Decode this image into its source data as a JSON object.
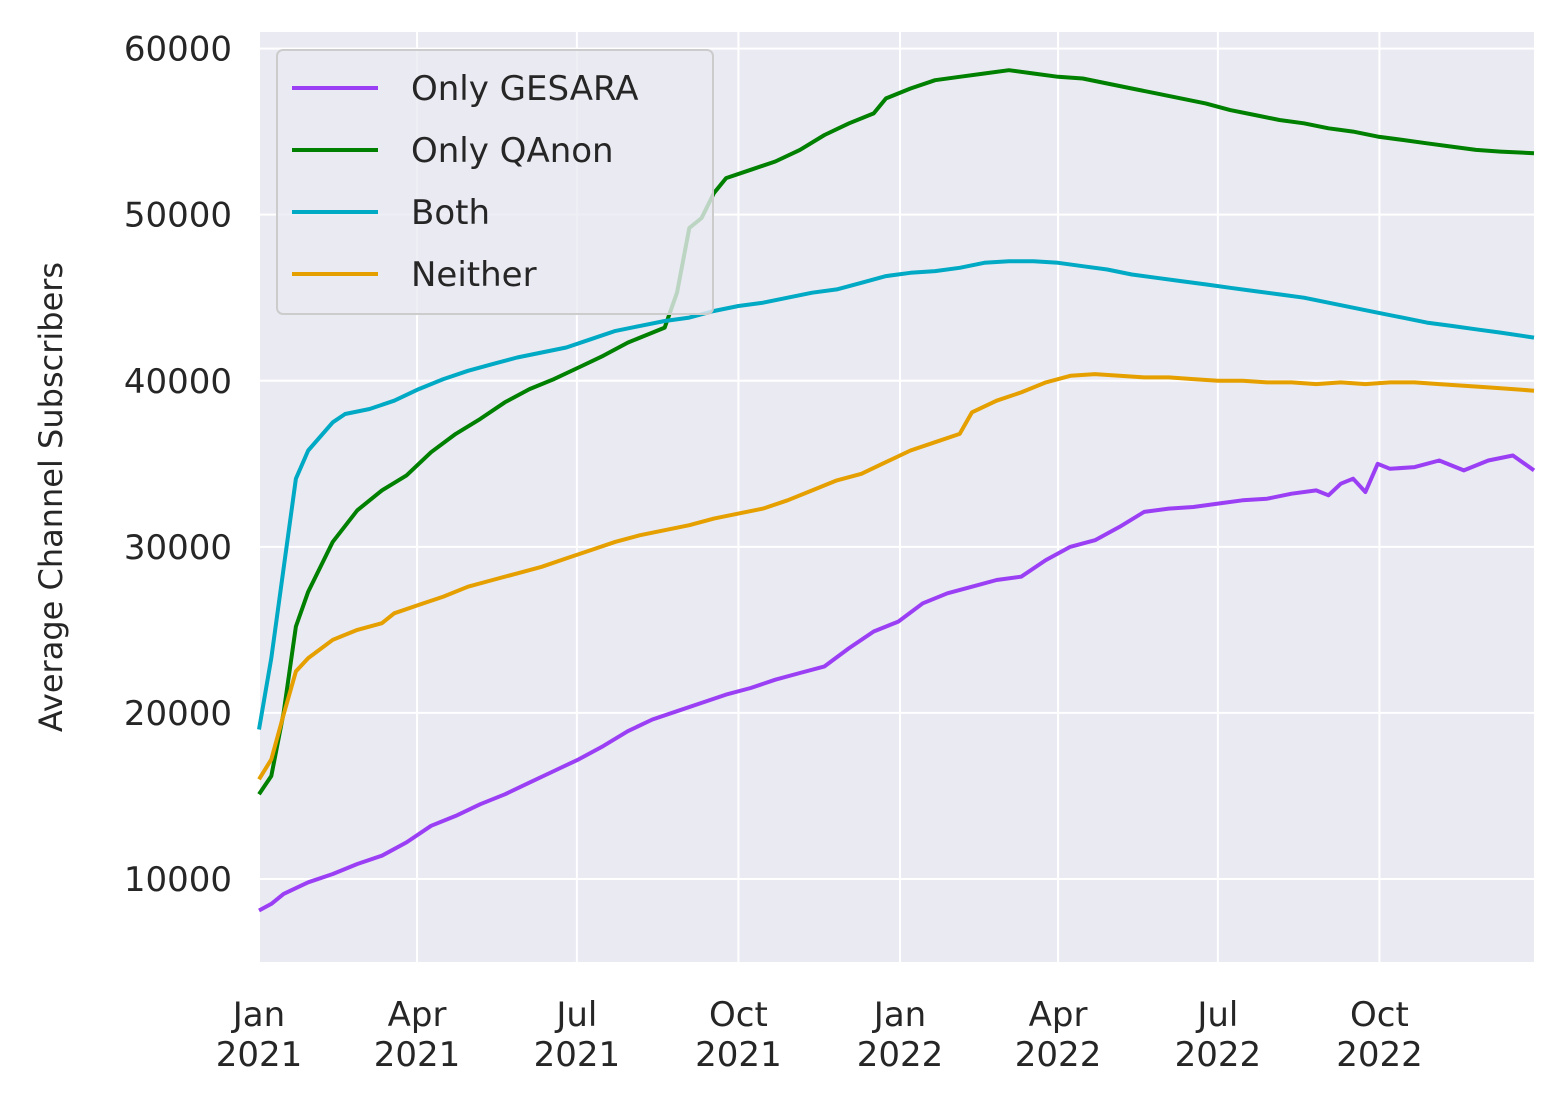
{
  "chart_data": {
    "type": "line",
    "title": "",
    "xlabel": "",
    "ylabel": "Average Channel Subscribers",
    "xlim": [
      "2021-01-01",
      "2022-12-28"
    ],
    "ylim": [
      5000,
      61000
    ],
    "grid": true,
    "legend_position": "top-left",
    "x_ticks": [
      {
        "date": "2021-01-01",
        "label": [
          "Jan",
          "2021"
        ]
      },
      {
        "date": "2021-04-01",
        "label": [
          "Apr",
          "2021"
        ]
      },
      {
        "date": "2021-07-01",
        "label": [
          "Jul",
          "2021"
        ]
      },
      {
        "date": "2021-10-01",
        "label": [
          "Oct",
          "2021"
        ]
      },
      {
        "date": "2022-01-01",
        "label": [
          "Jan",
          "2022"
        ]
      },
      {
        "date": "2022-04-01",
        "label": [
          "Apr",
          "2022"
        ]
      },
      {
        "date": "2022-07-01",
        "label": [
          "Jul",
          "2022"
        ]
      },
      {
        "date": "2022-10-01",
        "label": [
          "Oct",
          "2022"
        ]
      }
    ],
    "y_ticks": [
      10000,
      20000,
      30000,
      40000,
      50000,
      60000
    ],
    "series": [
      {
        "name": "Only GESARA",
        "color": "#9b3ff5",
        "points": [
          [
            "2021-01-01",
            8100
          ],
          [
            "2021-01-08",
            8500
          ],
          [
            "2021-01-15",
            9100
          ],
          [
            "2021-01-29",
            9800
          ],
          [
            "2021-02-12",
            10300
          ],
          [
            "2021-02-26",
            10900
          ],
          [
            "2021-03-12",
            11400
          ],
          [
            "2021-03-26",
            12200
          ],
          [
            "2021-04-09",
            13200
          ],
          [
            "2021-04-23",
            13800
          ],
          [
            "2021-05-07",
            14500
          ],
          [
            "2021-05-21",
            15100
          ],
          [
            "2021-06-04",
            15800
          ],
          [
            "2021-06-18",
            16500
          ],
          [
            "2021-07-02",
            17200
          ],
          [
            "2021-07-16",
            18000
          ],
          [
            "2021-07-30",
            18900
          ],
          [
            "2021-08-13",
            19600
          ],
          [
            "2021-08-27",
            20100
          ],
          [
            "2021-09-10",
            20600
          ],
          [
            "2021-09-24",
            21100
          ],
          [
            "2021-10-08",
            21500
          ],
          [
            "2021-10-22",
            22000
          ],
          [
            "2021-11-05",
            22400
          ],
          [
            "2021-11-19",
            22800
          ],
          [
            "2021-12-03",
            23900
          ],
          [
            "2021-12-17",
            24900
          ],
          [
            "2021-12-31",
            25500
          ],
          [
            "2022-01-14",
            26600
          ],
          [
            "2022-01-28",
            27200
          ],
          [
            "2022-02-11",
            27600
          ],
          [
            "2022-02-25",
            28000
          ],
          [
            "2022-03-11",
            28200
          ],
          [
            "2022-03-25",
            29200
          ],
          [
            "2022-04-08",
            30000
          ],
          [
            "2022-04-22",
            30400
          ],
          [
            "2022-05-06",
            31200
          ],
          [
            "2022-05-20",
            32100
          ],
          [
            "2022-06-03",
            32300
          ],
          [
            "2022-06-17",
            32400
          ],
          [
            "2022-07-01",
            32600
          ],
          [
            "2022-07-15",
            32800
          ],
          [
            "2022-07-29",
            32900
          ],
          [
            "2022-08-12",
            33200
          ],
          [
            "2022-08-26",
            33400
          ],
          [
            "2022-09-02",
            33100
          ],
          [
            "2022-09-09",
            33800
          ],
          [
            "2022-09-16",
            34100
          ],
          [
            "2022-09-23",
            33300
          ],
          [
            "2022-09-30",
            35000
          ],
          [
            "2022-10-07",
            34700
          ],
          [
            "2022-10-21",
            34800
          ],
          [
            "2022-11-04",
            35200
          ],
          [
            "2022-11-18",
            34600
          ],
          [
            "2022-12-02",
            35200
          ],
          [
            "2022-12-16",
            35500
          ],
          [
            "2022-12-28",
            34600
          ]
        ]
      },
      {
        "name": "Only QAnon",
        "color": "#008000",
        "points": [
          [
            "2021-01-01",
            15100
          ],
          [
            "2021-01-08",
            16200
          ],
          [
            "2021-01-15",
            20000
          ],
          [
            "2021-01-22",
            25200
          ],
          [
            "2021-01-29",
            27300
          ],
          [
            "2021-02-12",
            30300
          ],
          [
            "2021-02-26",
            32200
          ],
          [
            "2021-03-12",
            33400
          ],
          [
            "2021-03-26",
            34300
          ],
          [
            "2021-04-09",
            35700
          ],
          [
            "2021-04-23",
            36800
          ],
          [
            "2021-05-07",
            37700
          ],
          [
            "2021-05-21",
            38700
          ],
          [
            "2021-06-04",
            39500
          ],
          [
            "2021-06-18",
            40100
          ],
          [
            "2021-07-02",
            40800
          ],
          [
            "2021-07-16",
            41500
          ],
          [
            "2021-07-30",
            42300
          ],
          [
            "2021-08-13",
            42900
          ],
          [
            "2021-08-20",
            43200
          ],
          [
            "2021-08-27",
            45300
          ],
          [
            "2021-09-03",
            49200
          ],
          [
            "2021-09-10",
            49800
          ],
          [
            "2021-09-17",
            51300
          ],
          [
            "2021-09-24",
            52200
          ],
          [
            "2021-10-08",
            52700
          ],
          [
            "2021-10-22",
            53200
          ],
          [
            "2021-11-05",
            53900
          ],
          [
            "2021-11-19",
            54800
          ],
          [
            "2021-12-03",
            55500
          ],
          [
            "2021-12-17",
            56100
          ],
          [
            "2021-12-24",
            57000
          ],
          [
            "2022-01-07",
            57600
          ],
          [
            "2022-01-21",
            58100
          ],
          [
            "2022-02-04",
            58300
          ],
          [
            "2022-02-18",
            58500
          ],
          [
            "2022-03-04",
            58700
          ],
          [
            "2022-03-18",
            58500
          ],
          [
            "2022-04-01",
            58300
          ],
          [
            "2022-04-15",
            58200
          ],
          [
            "2022-04-29",
            57900
          ],
          [
            "2022-05-13",
            57600
          ],
          [
            "2022-05-27",
            57300
          ],
          [
            "2022-06-10",
            57000
          ],
          [
            "2022-06-24",
            56700
          ],
          [
            "2022-07-08",
            56300
          ],
          [
            "2022-07-22",
            56000
          ],
          [
            "2022-08-05",
            55700
          ],
          [
            "2022-08-19",
            55500
          ],
          [
            "2022-09-02",
            55200
          ],
          [
            "2022-09-16",
            55000
          ],
          [
            "2022-09-30",
            54700
          ],
          [
            "2022-10-14",
            54500
          ],
          [
            "2022-10-28",
            54300
          ],
          [
            "2022-11-11",
            54100
          ],
          [
            "2022-11-25",
            53900
          ],
          [
            "2022-12-09",
            53800
          ],
          [
            "2022-12-28",
            53700
          ]
        ]
      },
      {
        "name": "Both",
        "color": "#00a9c4",
        "points": [
          [
            "2021-01-01",
            19000
          ],
          [
            "2021-01-08",
            23300
          ],
          [
            "2021-01-15",
            28700
          ],
          [
            "2021-01-22",
            34100
          ],
          [
            "2021-01-29",
            35800
          ],
          [
            "2021-02-12",
            37500
          ],
          [
            "2021-02-19",
            38000
          ],
          [
            "2021-03-05",
            38300
          ],
          [
            "2021-03-19",
            38800
          ],
          [
            "2021-04-02",
            39500
          ],
          [
            "2021-04-16",
            40100
          ],
          [
            "2021-04-30",
            40600
          ],
          [
            "2021-05-14",
            41000
          ],
          [
            "2021-05-28",
            41400
          ],
          [
            "2021-06-11",
            41700
          ],
          [
            "2021-06-25",
            42000
          ],
          [
            "2021-07-09",
            42500
          ],
          [
            "2021-07-23",
            43000
          ],
          [
            "2021-08-06",
            43300
          ],
          [
            "2021-08-20",
            43600
          ],
          [
            "2021-09-03",
            43800
          ],
          [
            "2021-09-17",
            44200
          ],
          [
            "2021-10-01",
            44500
          ],
          [
            "2021-10-15",
            44700
          ],
          [
            "2021-10-29",
            45000
          ],
          [
            "2021-11-12",
            45300
          ],
          [
            "2021-11-26",
            45500
          ],
          [
            "2021-12-10",
            45900
          ],
          [
            "2021-12-24",
            46300
          ],
          [
            "2022-01-07",
            46500
          ],
          [
            "2022-01-21",
            46600
          ],
          [
            "2022-02-04",
            46800
          ],
          [
            "2022-02-18",
            47100
          ],
          [
            "2022-03-04",
            47200
          ],
          [
            "2022-03-18",
            47200
          ],
          [
            "2022-04-01",
            47100
          ],
          [
            "2022-04-15",
            46900
          ],
          [
            "2022-04-29",
            46700
          ],
          [
            "2022-05-13",
            46400
          ],
          [
            "2022-05-27",
            46200
          ],
          [
            "2022-06-10",
            46000
          ],
          [
            "2022-06-24",
            45800
          ],
          [
            "2022-07-08",
            45600
          ],
          [
            "2022-07-22",
            45400
          ],
          [
            "2022-08-05",
            45200
          ],
          [
            "2022-08-19",
            45000
          ],
          [
            "2022-09-02",
            44700
          ],
          [
            "2022-09-16",
            44400
          ],
          [
            "2022-09-30",
            44100
          ],
          [
            "2022-10-14",
            43800
          ],
          [
            "2022-10-28",
            43500
          ],
          [
            "2022-11-11",
            43300
          ],
          [
            "2022-11-25",
            43100
          ],
          [
            "2022-12-09",
            42900
          ],
          [
            "2022-12-28",
            42600
          ]
        ]
      },
      {
        "name": "Neither",
        "color": "#e5a000",
        "points": [
          [
            "2021-01-01",
            16000
          ],
          [
            "2021-01-08",
            17200
          ],
          [
            "2021-01-15",
            19900
          ],
          [
            "2021-01-22",
            22500
          ],
          [
            "2021-01-29",
            23300
          ],
          [
            "2021-02-12",
            24400
          ],
          [
            "2021-02-26",
            25000
          ],
          [
            "2021-03-12",
            25400
          ],
          [
            "2021-03-19",
            26000
          ],
          [
            "2021-04-02",
            26500
          ],
          [
            "2021-04-16",
            27000
          ],
          [
            "2021-04-30",
            27600
          ],
          [
            "2021-05-14",
            28000
          ],
          [
            "2021-05-28",
            28400
          ],
          [
            "2021-06-11",
            28800
          ],
          [
            "2021-06-25",
            29300
          ],
          [
            "2021-07-09",
            29800
          ],
          [
            "2021-07-23",
            30300
          ],
          [
            "2021-08-06",
            30700
          ],
          [
            "2021-08-20",
            31000
          ],
          [
            "2021-09-03",
            31300
          ],
          [
            "2021-09-17",
            31700
          ],
          [
            "2021-10-01",
            32000
          ],
          [
            "2021-10-15",
            32300
          ],
          [
            "2021-10-29",
            32800
          ],
          [
            "2021-11-12",
            33400
          ],
          [
            "2021-11-26",
            34000
          ],
          [
            "2021-12-10",
            34400
          ],
          [
            "2021-12-24",
            35100
          ],
          [
            "2022-01-07",
            35800
          ],
          [
            "2022-01-21",
            36300
          ],
          [
            "2022-02-04",
            36800
          ],
          [
            "2022-02-11",
            38100
          ],
          [
            "2022-02-25",
            38800
          ],
          [
            "2022-03-11",
            39300
          ],
          [
            "2022-03-25",
            39900
          ],
          [
            "2022-04-08",
            40300
          ],
          [
            "2022-04-22",
            40400
          ],
          [
            "2022-05-06",
            40300
          ],
          [
            "2022-05-20",
            40200
          ],
          [
            "2022-06-03",
            40200
          ],
          [
            "2022-06-17",
            40100
          ],
          [
            "2022-07-01",
            40000
          ],
          [
            "2022-07-15",
            40000
          ],
          [
            "2022-07-29",
            39900
          ],
          [
            "2022-08-12",
            39900
          ],
          [
            "2022-08-26",
            39800
          ],
          [
            "2022-09-09",
            39900
          ],
          [
            "2022-09-23",
            39800
          ],
          [
            "2022-10-07",
            39900
          ],
          [
            "2022-10-21",
            39900
          ],
          [
            "2022-11-04",
            39800
          ],
          [
            "2022-11-18",
            39700
          ],
          [
            "2022-12-02",
            39600
          ],
          [
            "2022-12-16",
            39500
          ],
          [
            "2022-12-28",
            39400
          ]
        ]
      }
    ]
  }
}
